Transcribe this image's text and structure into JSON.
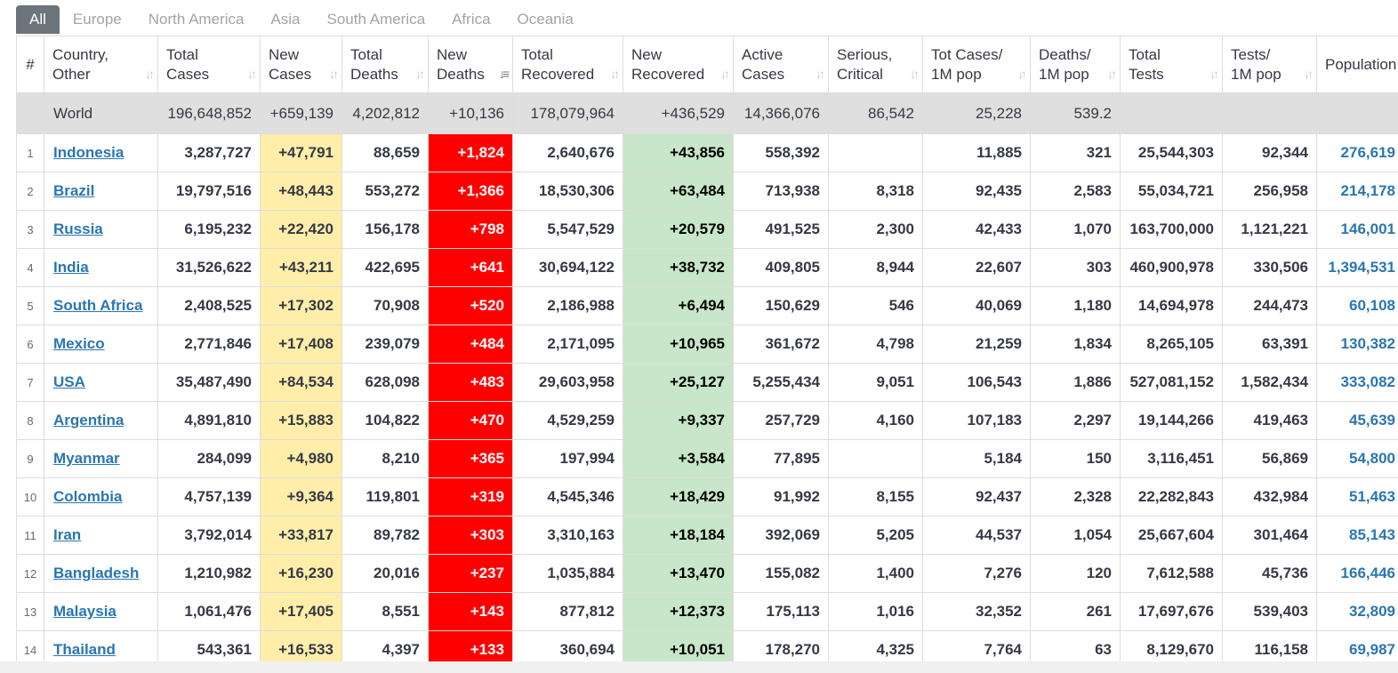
{
  "tabs": [
    "All",
    "Europe",
    "North America",
    "Asia",
    "South America",
    "Africa",
    "Oceania"
  ],
  "active_tab": "All",
  "headers": {
    "hash": "#",
    "country": "Country,\nOther",
    "total_cases": "Total\nCases",
    "new_cases": "New\nCases",
    "total_deaths": "Total\nDeaths",
    "new_deaths": "New\nDeaths",
    "total_recovered": "Total\nRecovered",
    "new_recovered": "New\nRecovered",
    "active_cases": "Active\nCases",
    "serious": "Serious,\nCritical",
    "tot_cases_1m": "Tot Cases/\n1M pop",
    "deaths_1m": "Deaths/\n1M pop",
    "total_tests": "Total\nTests",
    "tests_1m": "Tests/\n1M pop",
    "population": "Population"
  },
  "sort_icon": "sort-arrows-icon",
  "sorted_column": "new_deaths",
  "colors": {
    "new_cases_bg": "#ffeeaa",
    "new_deaths_bg": "#ff0000",
    "new_recovered_bg": "#c8e6c9",
    "world_row_bg": "#dfdfdf",
    "link": "#2a76b1",
    "active_tab_bg": "#6d747b"
  },
  "world": {
    "country": "World",
    "total_cases": "196,648,852",
    "new_cases": "+659,139",
    "total_deaths": "4,202,812",
    "new_deaths": "+10,136",
    "total_recovered": "178,079,964",
    "new_recovered": "+436,529",
    "active_cases": "14,366,076",
    "serious": "86,542",
    "tot_cases_1m": "25,228",
    "deaths_1m": "539.2",
    "total_tests": "",
    "tests_1m": "",
    "population": ""
  },
  "rows": [
    {
      "rank": "1",
      "country": "Indonesia",
      "total_cases": "3,287,727",
      "new_cases": "+47,791",
      "total_deaths": "88,659",
      "new_deaths": "+1,824",
      "total_recovered": "2,640,676",
      "new_recovered": "+43,856",
      "active_cases": "558,392",
      "serious": "",
      "tot_cases_1m": "11,885",
      "deaths_1m": "321",
      "total_tests": "25,544,303",
      "tests_1m": "92,344",
      "population": "276,619"
    },
    {
      "rank": "2",
      "country": "Brazil",
      "total_cases": "19,797,516",
      "new_cases": "+48,443",
      "total_deaths": "553,272",
      "new_deaths": "+1,366",
      "total_recovered": "18,530,306",
      "new_recovered": "+63,484",
      "active_cases": "713,938",
      "serious": "8,318",
      "tot_cases_1m": "92,435",
      "deaths_1m": "2,583",
      "total_tests": "55,034,721",
      "tests_1m": "256,958",
      "population": "214,178"
    },
    {
      "rank": "3",
      "country": "Russia",
      "total_cases": "6,195,232",
      "new_cases": "+22,420",
      "total_deaths": "156,178",
      "new_deaths": "+798",
      "total_recovered": "5,547,529",
      "new_recovered": "+20,579",
      "active_cases": "491,525",
      "serious": "2,300",
      "tot_cases_1m": "42,433",
      "deaths_1m": "1,070",
      "total_tests": "163,700,000",
      "tests_1m": "1,121,221",
      "population": "146,001"
    },
    {
      "rank": "4",
      "country": "India",
      "total_cases": "31,526,622",
      "new_cases": "+43,211",
      "total_deaths": "422,695",
      "new_deaths": "+641",
      "total_recovered": "30,694,122",
      "new_recovered": "+38,732",
      "active_cases": "409,805",
      "serious": "8,944",
      "tot_cases_1m": "22,607",
      "deaths_1m": "303",
      "total_tests": "460,900,978",
      "tests_1m": "330,506",
      "population": "1,394,531"
    },
    {
      "rank": "5",
      "country": "South Africa",
      "total_cases": "2,408,525",
      "new_cases": "+17,302",
      "total_deaths": "70,908",
      "new_deaths": "+520",
      "total_recovered": "2,186,988",
      "new_recovered": "+6,494",
      "active_cases": "150,629",
      "serious": "546",
      "tot_cases_1m": "40,069",
      "deaths_1m": "1,180",
      "total_tests": "14,694,978",
      "tests_1m": "244,473",
      "population": "60,108"
    },
    {
      "rank": "6",
      "country": "Mexico",
      "total_cases": "2,771,846",
      "new_cases": "+17,408",
      "total_deaths": "239,079",
      "new_deaths": "+484",
      "total_recovered": "2,171,095",
      "new_recovered": "+10,965",
      "active_cases": "361,672",
      "serious": "4,798",
      "tot_cases_1m": "21,259",
      "deaths_1m": "1,834",
      "total_tests": "8,265,105",
      "tests_1m": "63,391",
      "population": "130,382"
    },
    {
      "rank": "7",
      "country": "USA",
      "total_cases": "35,487,490",
      "new_cases": "+84,534",
      "total_deaths": "628,098",
      "new_deaths": "+483",
      "total_recovered": "29,603,958",
      "new_recovered": "+25,127",
      "active_cases": "5,255,434",
      "serious": "9,051",
      "tot_cases_1m": "106,543",
      "deaths_1m": "1,886",
      "total_tests": "527,081,152",
      "tests_1m": "1,582,434",
      "population": "333,082"
    },
    {
      "rank": "8",
      "country": "Argentina",
      "total_cases": "4,891,810",
      "new_cases": "+15,883",
      "total_deaths": "104,822",
      "new_deaths": "+470",
      "total_recovered": "4,529,259",
      "new_recovered": "+9,337",
      "active_cases": "257,729",
      "serious": "4,160",
      "tot_cases_1m": "107,183",
      "deaths_1m": "2,297",
      "total_tests": "19,144,266",
      "tests_1m": "419,463",
      "population": "45,639"
    },
    {
      "rank": "9",
      "country": "Myanmar",
      "total_cases": "284,099",
      "new_cases": "+4,980",
      "total_deaths": "8,210",
      "new_deaths": "+365",
      "total_recovered": "197,994",
      "new_recovered": "+3,584",
      "active_cases": "77,895",
      "serious": "",
      "tot_cases_1m": "5,184",
      "deaths_1m": "150",
      "total_tests": "3,116,451",
      "tests_1m": "56,869",
      "population": "54,800"
    },
    {
      "rank": "10",
      "country": "Colombia",
      "total_cases": "4,757,139",
      "new_cases": "+9,364",
      "total_deaths": "119,801",
      "new_deaths": "+319",
      "total_recovered": "4,545,346",
      "new_recovered": "+18,429",
      "active_cases": "91,992",
      "serious": "8,155",
      "tot_cases_1m": "92,437",
      "deaths_1m": "2,328",
      "total_tests": "22,282,843",
      "tests_1m": "432,984",
      "population": "51,463"
    },
    {
      "rank": "11",
      "country": "Iran",
      "total_cases": "3,792,014",
      "new_cases": "+33,817",
      "total_deaths": "89,782",
      "new_deaths": "+303",
      "total_recovered": "3,310,163",
      "new_recovered": "+18,184",
      "active_cases": "392,069",
      "serious": "5,205",
      "tot_cases_1m": "44,537",
      "deaths_1m": "1,054",
      "total_tests": "25,667,604",
      "tests_1m": "301,464",
      "population": "85,143"
    },
    {
      "rank": "12",
      "country": "Bangladesh",
      "total_cases": "1,210,982",
      "new_cases": "+16,230",
      "total_deaths": "20,016",
      "new_deaths": "+237",
      "total_recovered": "1,035,884",
      "new_recovered": "+13,470",
      "active_cases": "155,082",
      "serious": "1,400",
      "tot_cases_1m": "7,276",
      "deaths_1m": "120",
      "total_tests": "7,612,588",
      "tests_1m": "45,736",
      "population": "166,446"
    },
    {
      "rank": "13",
      "country": "Malaysia",
      "total_cases": "1,061,476",
      "new_cases": "+17,405",
      "total_deaths": "8,551",
      "new_deaths": "+143",
      "total_recovered": "877,812",
      "new_recovered": "+12,373",
      "active_cases": "175,113",
      "serious": "1,016",
      "tot_cases_1m": "32,352",
      "deaths_1m": "261",
      "total_tests": "17,697,676",
      "tests_1m": "539,403",
      "population": "32,809"
    },
    {
      "rank": "14",
      "country": "Thailand",
      "total_cases": "543,361",
      "new_cases": "+16,533",
      "total_deaths": "4,397",
      "new_deaths": "+133",
      "total_recovered": "360,694",
      "new_recovered": "+10,051",
      "active_cases": "178,270",
      "serious": "4,325",
      "tot_cases_1m": "7,764",
      "deaths_1m": "63",
      "total_tests": "8,129,670",
      "tests_1m": "116,158",
      "population": "69,987"
    }
  ]
}
